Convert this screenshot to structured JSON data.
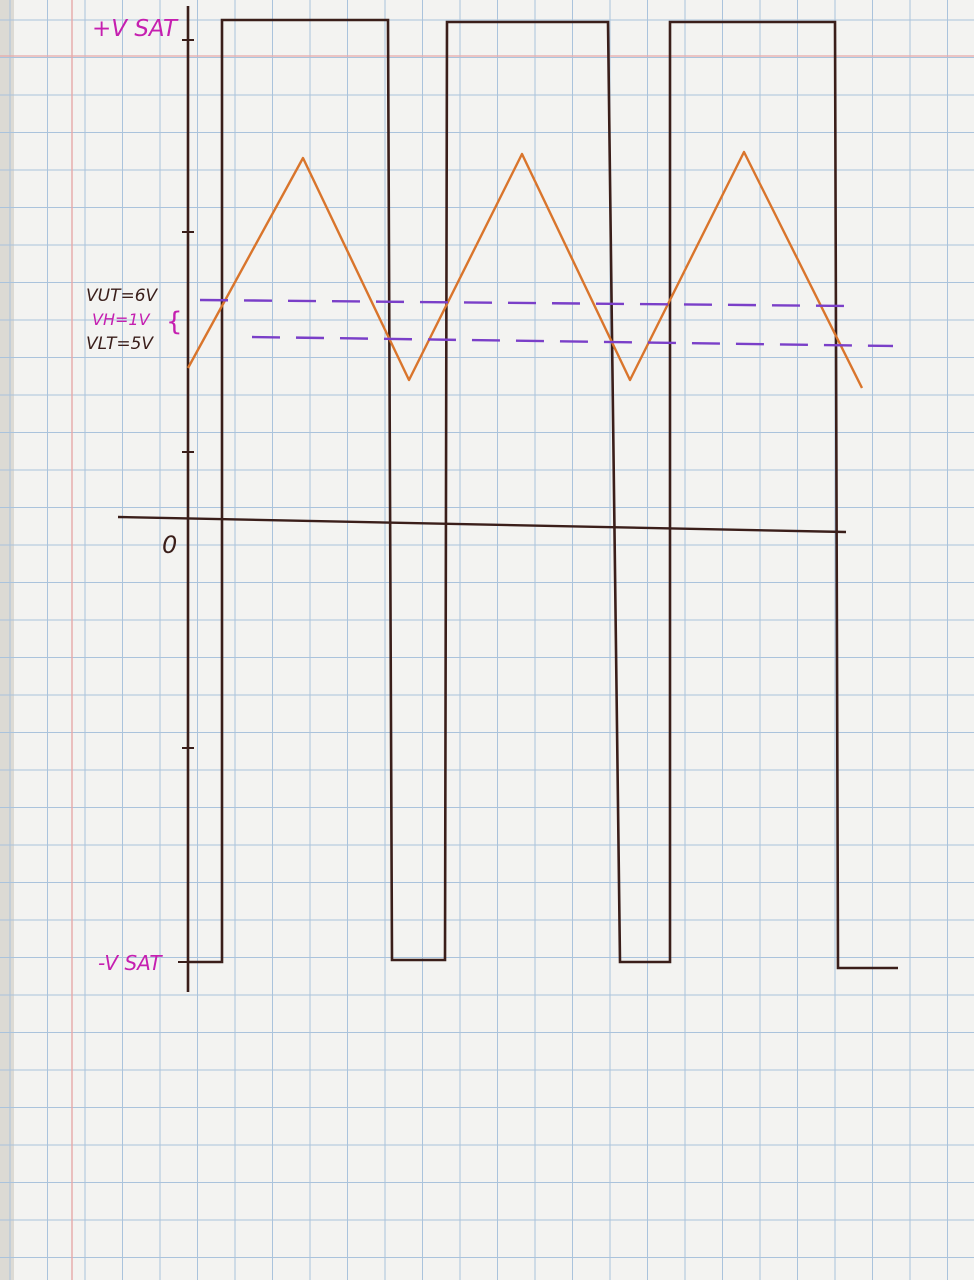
{
  "labels": {
    "plus_vsat": "+V SAT",
    "minus_vsat": "-V SAT",
    "zero": "0",
    "vut": "VUT=6V",
    "vh": "VH=1V",
    "vlt": "VLT=5V"
  },
  "colors": {
    "paper": "#f3f3f1",
    "grid": "#aac3dc",
    "margin_line": "#e6a9a9",
    "ink_dark": "#3a1e1a",
    "ink_orange": "#d9752c",
    "ink_purple": "#7a3fc8",
    "ink_magenta": "#c51fb0"
  },
  "signals": {
    "square_wave": {
      "high": "+V SAT",
      "low": "-V SAT",
      "cycles_shown": 3
    },
    "triangle_wave": {
      "upper_threshold": "VUT=6V",
      "lower_threshold": "VLT=5V",
      "peaks_shown": 3
    }
  }
}
